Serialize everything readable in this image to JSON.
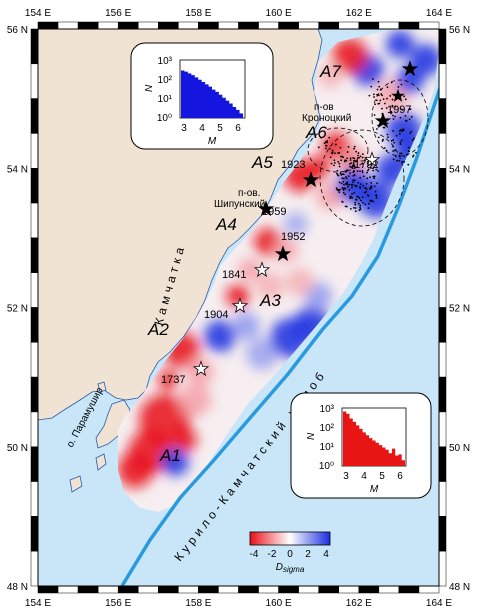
{
  "axes": {
    "lon_labels": [
      "154 E",
      "156 E",
      "158 E",
      "160 E",
      "162 E",
      "164 E"
    ],
    "lat_labels": [
      "56 N",
      "54 N",
      "52 N",
      "50 N",
      "48 N"
    ],
    "lon_range": [
      154,
      164
    ],
    "lat_range": [
      48,
      56
    ]
  },
  "zones": [
    "A1",
    "A2",
    "A3",
    "A4",
    "A5",
    "A6",
    "A7"
  ],
  "earthquakes": [
    {
      "year": "1737",
      "filled": false
    },
    {
      "year": "1904",
      "filled": false
    },
    {
      "year": "1841",
      "filled": false
    },
    {
      "year": "1952",
      "filled": true
    },
    {
      "year": "1959",
      "filled": true
    },
    {
      "year": "1923",
      "filled": true
    },
    {
      "year": "1792",
      "filled": false
    },
    {
      "year": "1997",
      "filled": true
    }
  ],
  "places": {
    "kamchatka": "Камчатка",
    "shipunsky_1": "п-ов.",
    "shipunsky_2": "Шипунский",
    "kronotsky_1": "п-ов",
    "kronotsky_2": "Кроноцкий",
    "paramushir": "о. Парамушир",
    "trench": "Курило-Камчатский желоб"
  },
  "colorbar": {
    "ticks": [
      "-4",
      "-2",
      "0",
      "2",
      "4"
    ],
    "label_main": "D",
    "label_sub": "sigma",
    "colors": [
      "#e8101a",
      "#ffffff",
      "#1a2ee0"
    ]
  },
  "insets": [
    {
      "ylabel": "N",
      "xlabel": "M",
      "yticks": [
        "10³",
        "10²",
        "10¹",
        "10⁰"
      ],
      "xticks": [
        "3",
        "4",
        "5",
        "6"
      ],
      "color": "#1515e0"
    },
    {
      "ylabel": "N",
      "xlabel": "M",
      "yticks": [
        "10³",
        "10²",
        "10¹",
        "10⁰"
      ],
      "xticks": [
        "3",
        "4",
        "5",
        "6"
      ],
      "color": "#e81515"
    }
  ],
  "colors": {
    "sea": "#c8e6f8",
    "land": "#f1e3d4",
    "trench": "#2a9ae0"
  }
}
